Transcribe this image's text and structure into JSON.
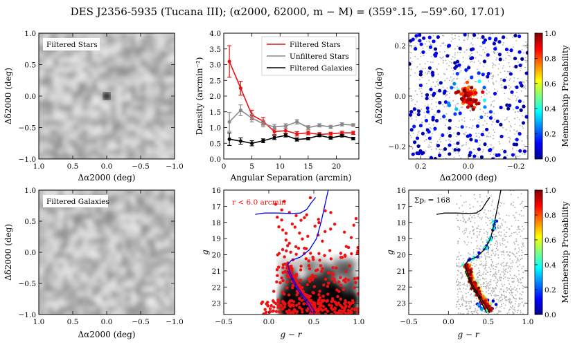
{
  "figure_title": "DES J2356-5935 (Tucana III); (α2000, δ2000, m − M) = (359°.15, −59°.60, 17.01)",
  "chart_data": [
    {
      "id": "filtered_stars_map",
      "type": "heatmap",
      "label": "Filtered Stars",
      "xlabel": "Δα2000 (deg)",
      "ylabel": "Δδ2000 (deg)",
      "xlim": [
        1.0,
        -1.0
      ],
      "ylim": [
        -1.0,
        1.0
      ],
      "xticks": [
        "1.0",
        "0.5",
        "0.0",
        "−0.5",
        "−1.0"
      ],
      "yticks": [
        "−1.0",
        "−0.5",
        "0.0",
        "0.5",
        "1.0"
      ],
      "overdensity_center": [
        0.0,
        0.0
      ],
      "colormap": "grayscale"
    },
    {
      "id": "radial_profile",
      "type": "line",
      "xlabel": "Angular Separation (arcmin)",
      "ylabel": "Density (arcmin⁻²)",
      "xlim": [
        0,
        24
      ],
      "ylim": [
        0.0,
        4.0
      ],
      "xticks": [
        "0",
        "5",
        "10",
        "15",
        "20"
      ],
      "yticks": [
        "0.0",
        "0.5",
        "1.0",
        "1.5",
        "2.0",
        "2.5",
        "3.0",
        "3.5",
        "4.0"
      ],
      "x": [
        1,
        3,
        5,
        7,
        9,
        11,
        13,
        15,
        17,
        19,
        21,
        23
      ],
      "series": [
        {
          "name": "Filtered Stars",
          "color": "#ee1111",
          "values": [
            3.1,
            2.25,
            1.4,
            1.2,
            0.87,
            0.9,
            0.8,
            0.83,
            0.78,
            0.8,
            0.83,
            0.83
          ],
          "errors": [
            0.5,
            0.22,
            0.15,
            0.12,
            0.09,
            0.08,
            0.07,
            0.06,
            0.06,
            0.05,
            0.05,
            0.05
          ]
        },
        {
          "name": "Unfiltered Stars",
          "color": "#888888",
          "values": [
            1.18,
            1.55,
            1.3,
            1.12,
            1.02,
            1.05,
            1.18,
            1.0,
            1.07,
            1.02,
            1.1,
            1.08
          ],
          "errors": [
            0.3,
            0.17,
            0.12,
            0.1,
            0.08,
            0.07,
            0.07,
            0.06,
            0.05,
            0.05,
            0.05,
            0.04
          ]
        },
        {
          "name": "Filtered Galaxies",
          "color": "#000000",
          "values": [
            0.63,
            0.57,
            0.5,
            0.58,
            0.68,
            0.75,
            0.62,
            0.65,
            0.75,
            0.67,
            0.74,
            0.65
          ],
          "errors": [
            0.2,
            0.1,
            0.08,
            0.06,
            0.06,
            0.05,
            0.05,
            0.04,
            0.04,
            0.04,
            0.04,
            0.04
          ]
        }
      ],
      "legend": "top-right"
    },
    {
      "id": "spatial_members",
      "type": "scatter",
      "xlabel": "Δα2000 (deg)",
      "ylabel": "Δδ2000 (deg)",
      "xlim": [
        0.25,
        -0.25
      ],
      "ylim": [
        -0.25,
        0.25
      ],
      "xticks": [
        "0.2",
        "0.0",
        "−0.2"
      ],
      "yticks": [
        "−0.2",
        "0.0",
        "0.2"
      ],
      "colorbar_label": "Membership Probability",
      "colorbar_ticks": [
        "0.0",
        "0.2",
        "0.4",
        "0.6",
        "0.8",
        "1.0"
      ]
    },
    {
      "id": "filtered_galaxies_map",
      "type": "heatmap",
      "label": "Filtered Galaxies",
      "xlabel": "Δα2000 (deg)",
      "ylabel": "Δδ2000 (deg)",
      "xlim": [
        1.0,
        -1.0
      ],
      "ylim": [
        -1.0,
        1.0
      ],
      "xticks": [
        "1.0",
        "0.5",
        "0.0",
        "−0.5",
        "−1.0"
      ],
      "yticks": [
        "−1.0",
        "−0.5",
        "0.0",
        "0.5",
        "1.0"
      ],
      "colormap": "grayscale"
    },
    {
      "id": "cmd_radius",
      "type": "scatter",
      "annotation": "r < 6.0 arcmin",
      "xlabel": "g − r",
      "ylabel": "g",
      "xlim": [
        -0.5,
        1.0
      ],
      "ylim": [
        23.7,
        16.0
      ],
      "xticks": [
        "−0.5",
        "0.0",
        "0.5",
        "1.0"
      ],
      "yticks": [
        "16",
        "17",
        "18",
        "19",
        "20",
        "21",
        "22",
        "23"
      ],
      "isochrone_color": "#0000ee",
      "isochrone_rgb": [
        [
          0.52,
          23.6
        ],
        [
          0.45,
          23.0
        ],
        [
          0.38,
          22.5
        ],
        [
          0.32,
          22.0
        ],
        [
          0.27,
          21.5
        ],
        [
          0.23,
          21.0
        ],
        [
          0.21,
          20.6
        ],
        [
          0.25,
          20.35
        ],
        [
          0.35,
          20.15
        ],
        [
          0.45,
          19.7
        ],
        [
          0.53,
          19.0
        ],
        [
          0.58,
          18.0
        ],
        [
          0.62,
          17.0
        ],
        [
          0.66,
          16.0
        ]
      ],
      "isochrone_hb": [
        [
          -0.15,
          17.5
        ],
        [
          -0.05,
          17.42
        ],
        [
          0.1,
          17.42
        ],
        [
          0.25,
          17.45
        ],
        [
          0.35,
          17.42
        ],
        [
          0.42,
          17.2
        ],
        [
          0.47,
          16.8
        ],
        [
          0.52,
          16.45
        ]
      ],
      "isochrone_lower": [
        [
          0.21,
          21.0
        ],
        [
          0.3,
          22.0
        ],
        [
          0.4,
          22.8
        ],
        [
          0.48,
          23.6
        ]
      ]
    },
    {
      "id": "cmd_members",
      "type": "scatter",
      "annotation": "Σpᵢ = 168",
      "xlabel": "g − r",
      "ylabel": "g",
      "xlim": [
        -0.5,
        1.0
      ],
      "ylim": [
        23.7,
        16.0
      ],
      "xticks": [
        "−0.5",
        "0.0",
        "0.5",
        "1.0"
      ],
      "yticks": [
        "16",
        "17",
        "18",
        "19",
        "20",
        "21",
        "22",
        "23"
      ],
      "colorbar_label": "Membership Probability",
      "colorbar_ticks": [
        "0.0",
        "0.2",
        "0.4",
        "0.6",
        "0.8",
        "1.0"
      ],
      "isochrone_color": "#000000"
    }
  ]
}
